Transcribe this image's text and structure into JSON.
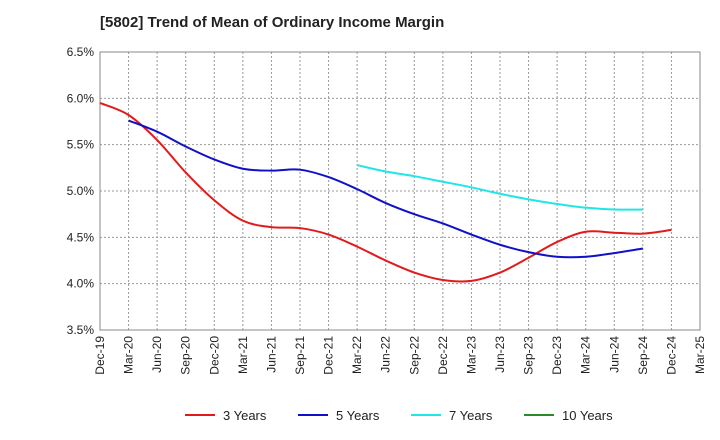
{
  "chart_data": {
    "type": "line",
    "title": "[5802]  Trend of Mean of Ordinary Income Margin",
    "xlabel": "",
    "ylabel": "",
    "ylim": [
      3.5,
      6.5
    ],
    "yticks": [
      "3.5%",
      "4.0%",
      "4.5%",
      "5.0%",
      "5.5%",
      "6.0%",
      "6.5%"
    ],
    "yticks_values": [
      3.5,
      4.0,
      4.5,
      5.0,
      5.5,
      6.0,
      6.5
    ],
    "x_categories": [
      "Dec-19",
      "Mar-20",
      "Jun-20",
      "Sep-20",
      "Dec-20",
      "Mar-21",
      "Jun-21",
      "Sep-21",
      "Dec-21",
      "Mar-22",
      "Jun-22",
      "Sep-22",
      "Dec-22",
      "Mar-23",
      "Jun-23",
      "Sep-23",
      "Dec-23",
      "Mar-24",
      "Jun-24",
      "Sep-24",
      "Dec-24",
      "Mar-25"
    ],
    "grid": true,
    "legend_position": "bottom",
    "series": [
      {
        "name": "3 Years",
        "color": "#e31a1c",
        "values": [
          5.95,
          5.82,
          5.55,
          5.2,
          4.9,
          4.68,
          4.61,
          4.6,
          4.53,
          4.4,
          4.25,
          4.12,
          4.04,
          4.03,
          4.12,
          4.28,
          4.45,
          4.56,
          4.55,
          4.54,
          4.58,
          null
        ]
      },
      {
        "name": "5 Years",
        "color": "#1010c8",
        "values": [
          null,
          5.76,
          5.64,
          5.48,
          5.34,
          5.24,
          5.22,
          5.23,
          5.15,
          5.02,
          4.87,
          4.75,
          4.65,
          4.53,
          4.42,
          4.34,
          4.29,
          4.29,
          4.33,
          4.38,
          null,
          null
        ]
      },
      {
        "name": "7 Years",
        "color": "#22e5e5",
        "values": [
          null,
          null,
          null,
          null,
          null,
          null,
          null,
          null,
          null,
          5.28,
          5.21,
          5.16,
          5.1,
          5.04,
          4.97,
          4.91,
          4.86,
          4.82,
          4.8,
          4.8,
          null,
          null
        ]
      },
      {
        "name": "10 Years",
        "color": "#2a8a2a",
        "values": [
          null,
          null,
          null,
          null,
          null,
          null,
          null,
          null,
          null,
          null,
          null,
          null,
          null,
          null,
          null,
          null,
          null,
          null,
          null,
          null,
          null,
          null
        ]
      }
    ]
  }
}
